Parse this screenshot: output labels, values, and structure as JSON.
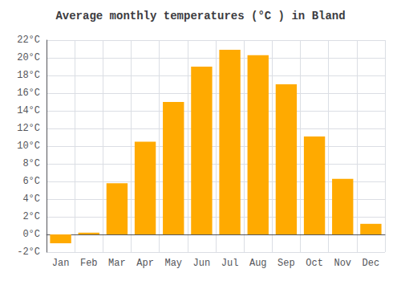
{
  "chart_data": {
    "type": "bar",
    "title": "Average monthly temperatures (°C ) in Bland",
    "categories": [
      "Jan",
      "Feb",
      "Mar",
      "Apr",
      "May",
      "Jun",
      "Jul",
      "Aug",
      "Sep",
      "Oct",
      "Nov",
      "Dec"
    ],
    "values": [
      -1.0,
      0.2,
      5.8,
      10.5,
      15.0,
      19.0,
      20.9,
      20.3,
      17.0,
      11.1,
      6.3,
      1.2
    ],
    "color": "#FFAA00",
    "ylim": [
      -2,
      22
    ],
    "yticks": [
      {
        "value": -2,
        "label": "-2°C"
      },
      {
        "value": 0,
        "label": "0°C"
      },
      {
        "value": 2,
        "label": "2°C"
      },
      {
        "value": 4,
        "label": "4°C"
      },
      {
        "value": 6,
        "label": "6°C"
      },
      {
        "value": 8,
        "label": "8°C"
      },
      {
        "value": 10,
        "label": "10°C"
      },
      {
        "value": 12,
        "label": "12°C"
      },
      {
        "value": 14,
        "label": "14°C"
      },
      {
        "value": 16,
        "label": "16°C"
      },
      {
        "value": 18,
        "label": "18°C"
      },
      {
        "value": 20,
        "label": "20°C"
      },
      {
        "value": 22,
        "label": "22°C"
      }
    ],
    "grid": true
  }
}
